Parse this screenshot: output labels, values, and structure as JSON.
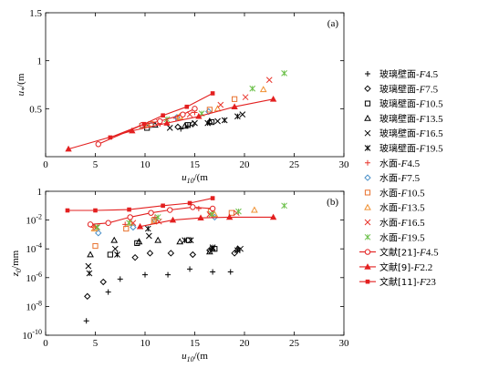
{
  "legend": [
    {
      "label": "玻璃壁面-F4.5",
      "marker": "plus",
      "color": "#000000"
    },
    {
      "label": "玻璃壁面-F7.5",
      "marker": "diamond",
      "color": "#000000"
    },
    {
      "label": "玻璃壁面-F10.5",
      "marker": "square",
      "color": "#000000"
    },
    {
      "label": "玻璃壁面-F13.5",
      "marker": "triangle",
      "color": "#000000"
    },
    {
      "label": "玻璃壁面-F16.5",
      "marker": "x",
      "color": "#000000"
    },
    {
      "label": "玻璃壁面-F19.5",
      "marker": "star",
      "color": "#000000"
    },
    {
      "label": "水面-F4.5",
      "marker": "plus",
      "color": "#e8352c"
    },
    {
      "label": "水面-F7.5",
      "marker": "diamond",
      "color": "#4a90c8"
    },
    {
      "label": "水面-F10.5",
      "marker": "square",
      "color": "#e8702c"
    },
    {
      "label": "水面-F13.5",
      "marker": "triangle",
      "color": "#f09030"
    },
    {
      "label": "水面-F16.5",
      "marker": "x",
      "color": "#e8352c"
    },
    {
      "label": "水面-F19.5",
      "marker": "star",
      "color": "#6cc04a"
    },
    {
      "label": "文献[21]-F4.5",
      "marker": "line-circle",
      "color": "#e32020"
    },
    {
      "label": "文献[9]-F2.2",
      "marker": "line-triangle",
      "color": "#e32020"
    },
    {
      "label": "文献[11]-F23",
      "marker": "line-square",
      "color": "#e32020"
    }
  ],
  "chart_data": [
    {
      "type": "scatter",
      "panel_label": "(a)",
      "xlabel": "u10/(m/s)",
      "ylabel": "u*/(m/s)",
      "xlim": [
        0,
        30
      ],
      "ylim": [
        0,
        1.5
      ],
      "xticks": [
        0,
        5,
        10,
        15,
        20,
        25,
        30
      ],
      "yticks": [
        0.5,
        1,
        1.5
      ],
      "ytick_labels": [
        "0.5",
        "1",
        "1.5"
      ],
      "series": [
        {
          "name": "玻璃壁面-F4.5",
          "points": [
            [
              13.6,
              0.29
            ],
            [
              14.3,
              0.32
            ]
          ]
        },
        {
          "name": "玻璃壁面-F7.5",
          "points": [
            [
              13.3,
              0.31
            ],
            [
              14.8,
              0.34
            ]
          ]
        },
        {
          "name": "玻璃壁面-F10.5",
          "points": [
            [
              10.2,
              0.3
            ],
            [
              14.3,
              0.33
            ],
            [
              16.7,
              0.36
            ]
          ]
        },
        {
          "name": "玻璃壁面-F13.5",
          "points": [
            [
              11.0,
              0.33
            ],
            [
              14.0,
              0.32
            ],
            [
              16.5,
              0.37
            ]
          ]
        },
        {
          "name": "玻璃壁面-F16.5",
          "points": [
            [
              12.5,
              0.3
            ],
            [
              15.0,
              0.35
            ],
            [
              17.3,
              0.37
            ],
            [
              19.8,
              0.44
            ]
          ]
        },
        {
          "name": "玻璃壁面-F19.5",
          "points": [
            [
              16.3,
              0.35
            ],
            [
              18.0,
              0.38
            ],
            [
              19.3,
              0.42
            ]
          ]
        },
        {
          "name": "水面-F4.5",
          "points": [
            [
              9.8,
              0.32
            ],
            [
              11.5,
              0.34
            ],
            [
              13.1,
              0.4
            ],
            [
              15.0,
              0.46
            ]
          ]
        },
        {
          "name": "水面-F7.5",
          "points": [
            [
              10.6,
              0.33
            ],
            [
              13.2,
              0.41
            ],
            [
              16.4,
              0.47
            ]
          ]
        },
        {
          "name": "水面-F10.5",
          "points": [
            [
              10.6,
              0.34
            ],
            [
              13.5,
              0.41
            ],
            [
              16.5,
              0.49
            ],
            [
              19.0,
              0.6
            ]
          ]
        },
        {
          "name": "水面-F13.5",
          "points": [
            [
              10.3,
              0.33
            ],
            [
              13.5,
              0.42
            ],
            [
              17.3,
              0.5
            ],
            [
              21.9,
              0.7
            ]
          ]
        },
        {
          "name": "水面-F16.5",
          "points": [
            [
              11.4,
              0.36
            ],
            [
              14.5,
              0.44
            ],
            [
              17.6,
              0.54
            ],
            [
              20.1,
              0.62
            ],
            [
              22.5,
              0.8
            ]
          ]
        },
        {
          "name": "水面-F19.5",
          "points": [
            [
              9.7,
              0.32
            ],
            [
              12.2,
              0.39
            ],
            [
              15.7,
              0.45
            ],
            [
              20.8,
              0.71
            ],
            [
              24.0,
              0.87
            ]
          ]
        },
        {
          "name": "文献[21]-F4.5",
          "points": [
            [
              5.3,
              0.13
            ],
            [
              9.7,
              0.33
            ],
            [
              11.5,
              0.37
            ],
            [
              13.8,
              0.44
            ],
            [
              15.0,
              0.5
            ]
          ]
        },
        {
          "name": "文献[9]-F2.2",
          "points": [
            [
              2.3,
              0.08
            ],
            [
              8.7,
              0.27
            ],
            [
              12.2,
              0.35
            ],
            [
              15.4,
              0.42
            ],
            [
              19.0,
              0.52
            ],
            [
              22.9,
              0.6
            ]
          ]
        },
        {
          "name": "文献[11]-F23",
          "points": [
            [
              6.5,
              0.2
            ],
            [
              9.9,
              0.34
            ],
            [
              11.8,
              0.43
            ],
            [
              14.2,
              0.52
            ],
            [
              16.8,
              0.66
            ]
          ]
        }
      ]
    },
    {
      "type": "scatter",
      "panel_label": "(b)",
      "xlabel": "u10/(m/s)",
      "ylabel": "z0/mm",
      "xlim": [
        0,
        30
      ],
      "ylim_log10": [
        -10,
        0
      ],
      "yscale": "log",
      "xticks": [
        0,
        5,
        10,
        15,
        20,
        25,
        30
      ],
      "yticks_log10": [
        0,
        -2,
        -4,
        -6,
        -8,
        -10
      ],
      "series": [
        {
          "name": "玻璃壁面-F4.5",
          "points": [
            [
              4.1,
              -9.0
            ],
            [
              6.3,
              -7.0
            ],
            [
              7.5,
              -6.1
            ],
            [
              10.0,
              -5.8
            ],
            [
              12.3,
              -5.8
            ],
            [
              14.5,
              -5.4
            ],
            [
              16.8,
              -5.6
            ],
            [
              18.6,
              -5.6
            ]
          ]
        },
        {
          "name": "玻璃壁面-F7.5",
          "points": [
            [
              4.2,
              -7.3
            ],
            [
              5.8,
              -6.3
            ],
            [
              9.0,
              -4.6
            ],
            [
              10.5,
              -4.3
            ],
            [
              12.6,
              -4.3
            ],
            [
              14.8,
              -4.4
            ],
            [
              16.5,
              -4.1
            ],
            [
              19.0,
              -4.3
            ]
          ]
        },
        {
          "name": "玻璃壁面-F10.5",
          "points": [
            [
              6.5,
              -4.4
            ],
            [
              9.2,
              -3.6
            ],
            [
              14.4,
              -3.4
            ],
            [
              17.0,
              -4.0
            ]
          ]
        },
        {
          "name": "玻璃壁面-F13.5",
          "points": [
            [
              4.5,
              -4.4
            ],
            [
              6.9,
              -3.4
            ],
            [
              9.4,
              -3.5
            ],
            [
              11.3,
              -3.4
            ],
            [
              13.5,
              -3.5
            ],
            [
              16.5,
              -4.2
            ],
            [
              19.3,
              -4.0
            ]
          ]
        },
        {
          "name": "玻璃壁面-F16.5",
          "points": [
            [
              4.3,
              -5.2
            ],
            [
              7.0,
              -4.0
            ],
            [
              10.4,
              -3.1
            ],
            [
              14.6,
              -3.4
            ],
            [
              16.8,
              -4.0
            ],
            [
              19.6,
              -4.0
            ]
          ]
        },
        {
          "name": "玻璃壁面-F19.5",
          "points": [
            [
              4.4,
              -5.7
            ],
            [
              7.2,
              -4.4
            ],
            [
              10.3,
              -2.6
            ],
            [
              14.0,
              -3.4
            ],
            [
              16.8,
              -3.9
            ],
            [
              19.3,
              -4.1
            ]
          ]
        },
        {
          "name": "水面-F4.5",
          "points": [
            [
              4.8,
              -2.5
            ],
            [
              8.0,
              -2.3
            ],
            [
              11.0,
              -1.8
            ],
            [
              15.4,
              -1.2
            ]
          ]
        },
        {
          "name": "水面-F7.5",
          "points": [
            [
              5.3,
              -2.9
            ],
            [
              8.8,
              -2.5
            ],
            [
              11.0,
              -2.0
            ],
            [
              17.0,
              -1.8
            ]
          ]
        },
        {
          "name": "水面-F10.5",
          "points": [
            [
              5.0,
              -3.8
            ],
            [
              8.1,
              -2.6
            ],
            [
              10.9,
              -2.0
            ],
            [
              16.6,
              -1.4
            ],
            [
              18.7,
              -1.5
            ]
          ]
        },
        {
          "name": "水面-F13.5",
          "points": [
            [
              4.9,
              -2.6
            ],
            [
              8.5,
              -2.2
            ],
            [
              10.9,
              -2.1
            ],
            [
              17.0,
              -1.6
            ],
            [
              21.0,
              -1.3
            ]
          ]
        },
        {
          "name": "水面-F16.5",
          "points": [
            [
              5.1,
              -2.5
            ],
            [
              8.8,
              -2.2
            ],
            [
              11.4,
              -2.1
            ],
            [
              16.5,
              -1.6
            ],
            [
              19.2,
              -1.5
            ]
          ]
        },
        {
          "name": "水面-F19.5",
          "points": [
            [
              5.2,
              -2.5
            ],
            [
              8.4,
              -2.2
            ],
            [
              11.3,
              -1.8
            ],
            [
              16.7,
              -1.6
            ],
            [
              19.4,
              -1.4
            ],
            [
              24.0,
              -1.0
            ]
          ]
        },
        {
          "name": "文献[21]-F4.5",
          "points": [
            [
              4.5,
              -2.3
            ],
            [
              6.3,
              -2.2
            ],
            [
              8.5,
              -1.8
            ],
            [
              10.6,
              -1.5
            ],
            [
              12.5,
              -1.3
            ],
            [
              14.8,
              -1.1
            ],
            [
              16.8,
              -1.2
            ]
          ]
        },
        {
          "name": "文献[9]-F2.2",
          "points": [
            [
              9.5,
              -2.45
            ],
            [
              12.8,
              -2.0
            ],
            [
              15.6,
              -1.85
            ],
            [
              18.5,
              -1.8
            ],
            [
              22.9,
              -1.8
            ]
          ]
        },
        {
          "name": "文献[11]-F23",
          "points": [
            [
              2.2,
              -1.33
            ],
            [
              5.0,
              -1.33
            ],
            [
              8.4,
              -1.27
            ],
            [
              11.8,
              -1.0
            ],
            [
              14.5,
              -0.82
            ],
            [
              16.8,
              -0.48
            ]
          ]
        }
      ]
    }
  ]
}
